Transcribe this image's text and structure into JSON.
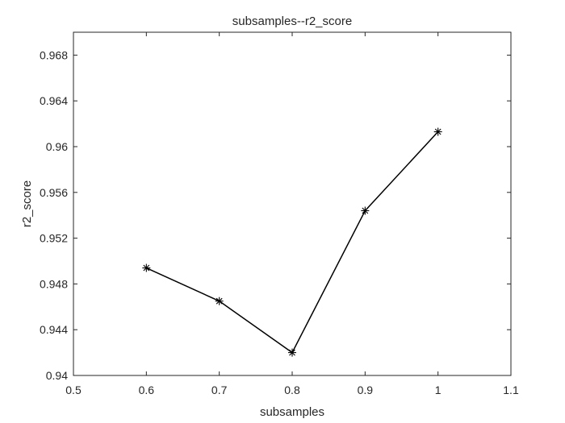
{
  "chart_data": {
    "type": "line",
    "title": "subsamples--r2_score",
    "xlabel": "subsamples",
    "ylabel": "r2_score",
    "xlim": [
      0.5,
      1.1
    ],
    "ylim": [
      0.94,
      0.97
    ],
    "xticks": [
      0.5,
      0.6,
      0.7,
      0.8,
      0.9,
      1.0,
      1.1
    ],
    "xtick_labels": [
      "0.5",
      "0.6",
      "0.7",
      "0.8",
      "0.9",
      "1",
      "1.1"
    ],
    "yticks": [
      0.94,
      0.944,
      0.948,
      0.952,
      0.956,
      0.96,
      0.964,
      0.968
    ],
    "ytick_labels": [
      "0.94",
      "0.944",
      "0.948",
      "0.952",
      "0.956",
      "0.96",
      "0.964",
      "0.968"
    ],
    "grid": false,
    "series": [
      {
        "x": [
          0.6,
          0.7,
          0.8,
          0.9,
          1.0
        ],
        "y": [
          0.9494,
          0.9465,
          0.942,
          0.9544,
          0.9613
        ],
        "color": "#000000",
        "marker": "asterisk"
      }
    ]
  }
}
